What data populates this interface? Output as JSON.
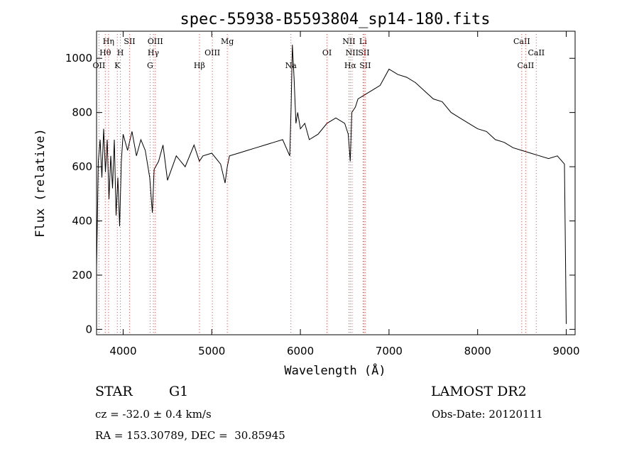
{
  "chart_data": {
    "type": "line",
    "title": "spec-55938-B5593804_sp14-180.fits",
    "xlabel": "Wavelength (Å)",
    "ylabel": "Flux (relative)",
    "xlim": [
      3700,
      9100
    ],
    "ylim": [
      -20,
      1100
    ],
    "xticks": [
      4000,
      5000,
      6000,
      7000,
      8000,
      9000
    ],
    "yticks": [
      0,
      200,
      400,
      600,
      800,
      1000
    ],
    "line_color": "#000000",
    "marker_color": "#e05050",
    "series": [
      {
        "x": [
          3700,
          3720,
          3740,
          3760,
          3780,
          3800,
          3820,
          3840,
          3860,
          3880,
          3900,
          3920,
          3940,
          3960,
          3980,
          4000,
          4050,
          4100,
          4150,
          4200,
          4250,
          4300,
          4330,
          4350,
          4400,
          4450,
          4500,
          4600,
          4700,
          4800,
          4860,
          4900,
          5000,
          5100,
          5150,
          5175,
          5200,
          5300,
          5400,
          5500,
          5600,
          5700,
          5800,
          5880,
          5895,
          5910,
          5930,
          5950,
          5970,
          6000,
          6050,
          6100,
          6200,
          6300,
          6400,
          6500,
          6540,
          6563,
          6580,
          6620,
          6650,
          6700,
          6800,
          6900,
          7000,
          7100,
          7200,
          7300,
          7400,
          7500,
          7600,
          7700,
          7800,
          7900,
          8000,
          8100,
          8200,
          8300,
          8400,
          8500,
          8600,
          8700,
          8800,
          8900,
          8980,
          9000
        ],
        "y": [
          230,
          620,
          700,
          560,
          740,
          580,
          700,
          480,
          640,
          520,
          700,
          420,
          560,
          380,
          620,
          720,
          660,
          730,
          640,
          700,
          660,
          560,
          430,
          590,
          620,
          680,
          550,
          640,
          600,
          680,
          620,
          640,
          650,
          610,
          540,
          600,
          640,
          650,
          660,
          670,
          680,
          690,
          700,
          640,
          820,
          1050,
          920,
          760,
          800,
          740,
          760,
          700,
          720,
          760,
          780,
          760,
          720,
          620,
          800,
          820,
          850,
          860,
          880,
          900,
          960,
          940,
          930,
          910,
          880,
          850,
          840,
          800,
          780,
          760,
          740,
          730,
          700,
          690,
          670,
          660,
          650,
          640,
          630,
          640,
          610,
          20
        ]
      }
    ],
    "line_markers": [
      {
        "x": 3727,
        "label": "OII",
        "row": 3
      },
      {
        "x": 3798,
        "label": "Hθ",
        "row": 2
      },
      {
        "x": 3835,
        "label": "Hη",
        "row": 1
      },
      {
        "x": 3934,
        "label": "K",
        "row": 3
      },
      {
        "x": 3969,
        "label": "H",
        "row": 2
      },
      {
        "x": 4072,
        "label": "SII",
        "row": 1
      },
      {
        "x": 4304,
        "label": "G",
        "row": 3
      },
      {
        "x": 4341,
        "label": "Hγ",
        "row": 2
      },
      {
        "x": 4363,
        "label": "OIII",
        "row": 1
      },
      {
        "x": 4861,
        "label": "Hβ",
        "row": 3
      },
      {
        "x": 5007,
        "label": "OIII",
        "row": 2
      },
      {
        "x": 5175,
        "label": "Mg",
        "row": 1
      },
      {
        "x": 5893,
        "label": "Na",
        "row": 3
      },
      {
        "x": 6300,
        "label": "OI",
        "row": 2
      },
      {
        "x": 6548,
        "label": "NII",
        "row": 1
      },
      {
        "x": 6563,
        "label": "Hα",
        "row": 3
      },
      {
        "x": 6583,
        "label": "NII",
        "row": 2
      },
      {
        "x": 6707,
        "label": "Li",
        "row": 1
      },
      {
        "x": 6716,
        "label": "SII",
        "row": 2
      },
      {
        "x": 6731,
        "label": "SII",
        "row": 3
      },
      {
        "x": 8498,
        "label": "CaII",
        "row": 1
      },
      {
        "x": 8542,
        "label": "CaII",
        "row": 3
      },
      {
        "x": 8662,
        "label": "CaII",
        "row": 2
      }
    ]
  },
  "info": {
    "object_class": "STAR",
    "subclass": "G1",
    "survey": "LAMOST DR2",
    "redshift": "cz = -32.0 ± 0.4 km/s",
    "obs_date": "Obs-Date: 20120111",
    "coords": "RA = 153.30789, DEC =  30.85945"
  }
}
